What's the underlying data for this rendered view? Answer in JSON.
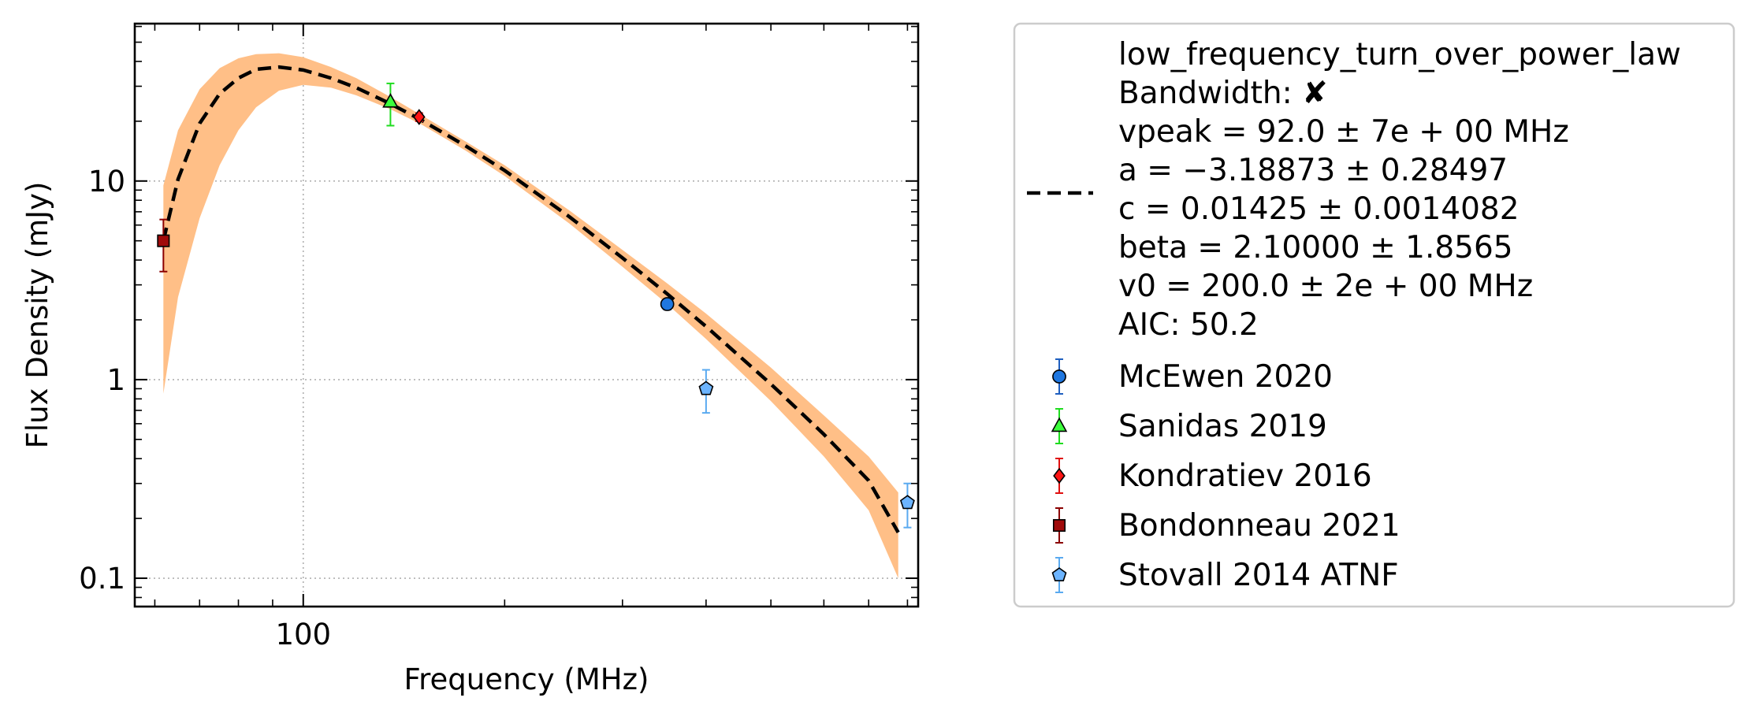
{
  "chart_data": {
    "type": "scatter",
    "xlabel": "Frequency (MHz)",
    "ylabel": "Flux Density (mJy)",
    "xscale": "log",
    "yscale": "log",
    "xlim": [
      56,
      830
    ],
    "ylim": [
      0.072,
      62
    ],
    "x_ticks": [
      {
        "value": 100,
        "label": "100"
      }
    ],
    "y_ticks": [
      {
        "value": 0.1,
        "label": "0.1"
      },
      {
        "value": 1,
        "label": "1"
      },
      {
        "value": 10,
        "label": "10"
      }
    ],
    "grid": true,
    "legend_position": "outside-right",
    "fit": {
      "model": "low_frequency_turn_over_power_law",
      "line_style": "dashed",
      "line_color": "#000000",
      "band_color": "#ffbf87",
      "x": [
        61.8,
        65,
        70,
        75,
        80,
        85,
        92,
        100,
        110,
        120,
        135,
        150,
        175,
        200,
        250,
        300,
        350,
        400,
        500,
        600,
        700,
        775
      ],
      "y": [
        5.0,
        10.2,
        19.5,
        27.5,
        33.0,
        36.5,
        37.5,
        36.2,
        33.0,
        29.5,
        24.5,
        20.3,
        15.0,
        11.3,
        6.6,
        4.1,
        2.7,
        1.85,
        0.95,
        0.53,
        0.31,
        0.17
      ],
      "upper": [
        9.5,
        18.0,
        29.0,
        37.0,
        41.5,
        43.5,
        44.0,
        42.0,
        37.5,
        33.0,
        26.5,
        21.5,
        15.8,
        12.0,
        7.1,
        4.5,
        3.05,
        2.15,
        1.15,
        0.66,
        0.41,
        0.27
      ],
      "lower": [
        0.85,
        2.6,
        6.5,
        12.0,
        18.0,
        23.5,
        28.5,
        30.5,
        29.5,
        27.0,
        23.0,
        19.3,
        14.2,
        10.6,
        6.1,
        3.7,
        2.4,
        1.6,
        0.78,
        0.41,
        0.22,
        0.1
      ]
    },
    "series": [
      {
        "name": "McEwen 2020",
        "marker": "circle",
        "color": "#1f77e0",
        "errcolor": "#1f5fbf",
        "points": [
          {
            "x": 350,
            "y": 2.4,
            "ylo": 2.25,
            "yhi": 2.55
          }
        ]
      },
      {
        "name": "Sanidas 2019",
        "marker": "triangle",
        "color": "#3cff3c",
        "errcolor": "#1fdc1f",
        "points": [
          {
            "x": 135,
            "y": 25.0,
            "ylo": 19.0,
            "yhi": 31.0
          }
        ]
      },
      {
        "name": "Kondratiev 2016",
        "marker": "diamond",
        "color": "#ff1414",
        "errcolor": "#e01010",
        "points": [
          {
            "x": 149,
            "y": 21.0,
            "ylo": 20.0,
            "yhi": 22.0
          }
        ]
      },
      {
        "name": "Bondonneau 2021",
        "marker": "square",
        "color": "#a00a0a",
        "errcolor": "#8b0000",
        "points": [
          {
            "x": 61.8,
            "y": 5.0,
            "ylo": 3.5,
            "yhi": 6.4
          }
        ]
      },
      {
        "name": "Stovall 2014 ATNF",
        "marker": "pentagon",
        "color": "#6cb4ff",
        "errcolor": "#5aaaf0",
        "points": [
          {
            "x": 400,
            "y": 0.9,
            "ylo": 0.68,
            "yhi": 1.12
          },
          {
            "x": 800,
            "y": 0.24,
            "ylo": 0.18,
            "yhi": 0.3
          }
        ]
      }
    ]
  },
  "legend": {
    "fit_lines": [
      "low_frequency_turn_over_power_law",
      "Bandwidth: ✘",
      "vpeak = 92.0 ± 7e + 00 MHz",
      "a = −3.18873 ± 0.28497",
      "c = 0.01425 ± 0.0014082",
      "beta = 2.10000 ± 1.8565",
      "v0 = 200.0 ± 2e + 00 MHz",
      "AIC: 50.2"
    ],
    "entries": [
      "McEwen 2020",
      "Sanidas 2019",
      "Kondratiev 2016",
      "Bondonneau 2021",
      "Stovall 2014 ATNF"
    ]
  }
}
